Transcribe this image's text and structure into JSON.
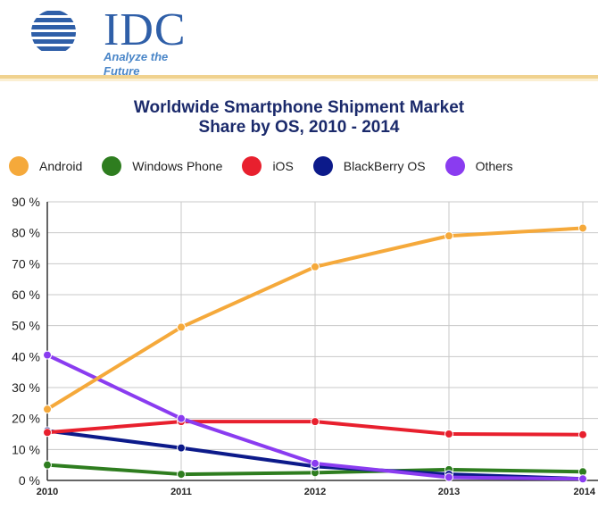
{
  "logo": {
    "brand": "IDC",
    "tagline": "Analyze the Future"
  },
  "colors": {
    "Android": "#f5a93b",
    "Windows Phone": "#2e7d1f",
    "iOS": "#e8202e",
    "BlackBerry OS": "#0c1a8a",
    "Others": "#8a3cf0"
  },
  "chart_data": {
    "type": "line",
    "title_line1": "Worldwide Smartphone Shipment Market",
    "title_line2": "Share by OS, 2010 - 2014",
    "categories": [
      "2010",
      "2011",
      "2012",
      "2013",
      "2014"
    ],
    "ylim": [
      0,
      90
    ],
    "yticks": [
      "0 %",
      "10 %",
      "20 %",
      "30 %",
      "40 %",
      "50 %",
      "60 %",
      "70 %",
      "80 %",
      "90 %"
    ],
    "series": [
      {
        "name": "Android",
        "values": [
          23,
          49.5,
          69,
          79,
          81.5
        ]
      },
      {
        "name": "Windows Phone",
        "values": [
          5,
          2,
          2.5,
          3.5,
          2.8
        ]
      },
      {
        "name": "iOS",
        "values": [
          15.5,
          19,
          19,
          15,
          14.8
        ]
      },
      {
        "name": "BlackBerry OS",
        "values": [
          16,
          10.5,
          4.5,
          2,
          0.5
        ]
      },
      {
        "name": "Others",
        "values": [
          40.5,
          20,
          5.5,
          1,
          0.5
        ]
      }
    ],
    "legend_position": "top"
  }
}
